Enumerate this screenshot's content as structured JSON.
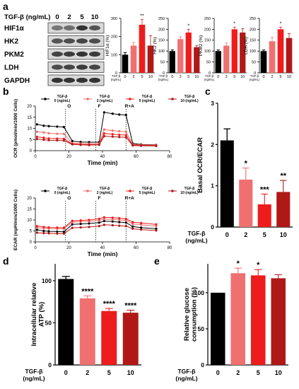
{
  "panel_labels": {
    "a": "a",
    "b": "b",
    "c": "c",
    "d": "d",
    "e": "e"
  },
  "colors": {
    "c0": "#000000",
    "c2": "#f07070",
    "c5": "#ee1c1c",
    "c10": "#b01818",
    "blot_bg": "#d8d8d8",
    "band": "#2a2a2a"
  },
  "chart_data": [
    {
      "id": "a-blot",
      "type": "other",
      "treatment_label": "TGF-β (ng/mL)",
      "lanes": [
        "0",
        "2",
        "5",
        "10"
      ],
      "bands": [
        "HIF1α",
        "HK2",
        "PKM2",
        "LDH",
        "GAPDH"
      ]
    },
    {
      "id": "a-hif1a",
      "type": "bar",
      "ylabel": "HIF1α (%)",
      "categories": [
        "0",
        "2",
        "5",
        "10"
      ],
      "values": [
        100,
        150,
        265,
        150
      ],
      "errors": [
        12,
        18,
        30,
        55
      ],
      "ylim": [
        0,
        300
      ],
      "yticks": [
        "0",
        "100",
        "200",
        "300"
      ],
      "annotations": [
        "",
        "",
        "**",
        ""
      ],
      "xlabel_prefix": "TGF-β\n(ng/mL)"
    },
    {
      "id": "a-hk2",
      "type": "bar",
      "ylabel": "HK2 (%)",
      "categories": [
        "0",
        "2",
        "5",
        "10"
      ],
      "values": [
        100,
        155,
        185,
        118
      ],
      "errors": [
        5,
        10,
        15,
        8
      ],
      "ylim": [
        0,
        250
      ],
      "yticks": [
        "0",
        "50",
        "100",
        "150",
        "200",
        "250"
      ],
      "annotations": [
        "",
        "",
        "*",
        ""
      ],
      "xlabel_prefix": "TGF-β\n(ng/mL)"
    },
    {
      "id": "a-pkm2",
      "type": "bar",
      "ylabel": "PKM2 (%)",
      "categories": [
        "0",
        "2",
        "5",
        "10"
      ],
      "values": [
        100,
        125,
        200,
        185
      ],
      "errors": [
        5,
        12,
        10,
        18
      ],
      "ylim": [
        0,
        250
      ],
      "yticks": [
        "0",
        "50",
        "100",
        "150",
        "200",
        "250"
      ],
      "annotations": [
        "",
        "",
        "*",
        ""
      ],
      "xlabel_prefix": "TGF-β\n(ng/mL)"
    },
    {
      "id": "a-ldh",
      "type": "bar",
      "ylabel": "LDH (%)",
      "categories": [
        "0",
        "2",
        "5",
        "10"
      ],
      "values": [
        100,
        145,
        200,
        160
      ],
      "errors": [
        5,
        18,
        10,
        20
      ],
      "ylim": [
        0,
        250
      ],
      "yticks": [
        "0",
        "50",
        "100",
        "150",
        "200",
        "250"
      ],
      "annotations": [
        "",
        "",
        "*",
        ""
      ],
      "xlabel_prefix": "TGF-β\n(ng/mL)"
    },
    {
      "id": "b-ocr",
      "type": "line",
      "xlabel": "Time (min)",
      "ylabel": "OCR (pmol/min/1000 Cells)",
      "xlim": [
        0,
        80
      ],
      "ylim": [
        0,
        20
      ],
      "xticks": [
        0,
        20,
        40,
        60,
        80
      ],
      "yticks": [
        0,
        5,
        10,
        15,
        20
      ],
      "injections": [
        {
          "x": 18,
          "label": "O"
        },
        {
          "x": 36,
          "label": "F"
        },
        {
          "x": 54,
          "label": "R+A"
        }
      ],
      "x": [
        1,
        5,
        8,
        13,
        17,
        22,
        27,
        32,
        38,
        41,
        46,
        50,
        54,
        58,
        63,
        72
      ],
      "series": [
        {
          "name": "TGF-β\n0 (ng/mL)",
          "values": [
            11.8,
            11.2,
            11.0,
            10.8,
            10.6,
            4.3,
            3.9,
            3.8,
            3.8,
            17.2,
            16.6,
            16.2,
            16.0,
            3.2,
            2.8,
            2.6
          ]
        },
        {
          "name": "TGF-β\n2 (ng/mL)",
          "values": [
            8.5,
            8.2,
            7.8,
            7.6,
            7.5,
            3.4,
            3.2,
            3.1,
            3.2,
            9.5,
            9.0,
            8.7,
            8.5,
            2.8,
            2.6,
            2.5
          ]
        },
        {
          "name": "TGF-β\n5 (ng/mL)",
          "values": [
            6.2,
            5.8,
            5.5,
            5.4,
            5.3,
            3.0,
            2.8,
            2.7,
            2.8,
            7.7,
            7.4,
            7.1,
            7.0,
            2.5,
            2.4,
            2.3
          ]
        },
        {
          "name": "TGF-β\n10 (ng/mL)",
          "values": [
            5.2,
            4.9,
            4.7,
            4.6,
            4.5,
            2.8,
            2.6,
            2.5,
            2.6,
            6.5,
            6.3,
            6.1,
            6.0,
            2.3,
            2.2,
            2.1
          ]
        }
      ]
    },
    {
      "id": "b-ecar",
      "type": "line",
      "xlabel": "Time (min)",
      "ylabel": "ECAR (mpH/min/1000 Cells)",
      "xlim": [
        0,
        80
      ],
      "ylim": [
        0,
        20
      ],
      "xticks": [
        0,
        20,
        40,
        60,
        80
      ],
      "yticks": [
        0,
        5,
        10,
        15,
        20
      ],
      "injections": [
        {
          "x": 18,
          "label": "O"
        },
        {
          "x": 36,
          "label": "F"
        },
        {
          "x": 54,
          "label": "R+A"
        }
      ],
      "x": [
        1,
        5,
        8,
        13,
        17,
        22,
        27,
        32,
        38,
        41,
        46,
        50,
        54,
        58,
        63,
        72
      ],
      "series": [
        {
          "name": "TGF-β\n0 (ng/mL)",
          "values": [
            5.5,
            5.0,
            4.8,
            4.7,
            4.6,
            8.0,
            8.2,
            8.4,
            8.8,
            9.5,
            9.3,
            9.0,
            8.8,
            7.0,
            6.5,
            6.0
          ]
        },
        {
          "name": "TGF-β\n2 (ng/mL)",
          "values": [
            6.5,
            6.2,
            6.0,
            6.0,
            6.0,
            9.0,
            9.2,
            9.4,
            9.8,
            10.4,
            10.2,
            10.0,
            9.8,
            8.2,
            7.8,
            7.2
          ]
        },
        {
          "name": "TGF-β\n5 (ng/mL)",
          "values": [
            7.2,
            6.8,
            6.6,
            6.5,
            6.5,
            9.6,
            9.8,
            10.0,
            10.5,
            11.2,
            11.0,
            10.8,
            10.5,
            9.0,
            8.6,
            8.0
          ]
        },
        {
          "name": "TGF-β\n10 (ng/mL)",
          "values": [
            4.2,
            4.0,
            3.9,
            3.8,
            3.8,
            6.4,
            6.6,
            6.8,
            7.2,
            7.8,
            7.6,
            7.4,
            7.2,
            6.0,
            5.6,
            5.2
          ]
        }
      ]
    },
    {
      "id": "c",
      "type": "bar",
      "ylabel": "Basal OCR/ECAR",
      "xlabel": "TGF-β\n(ng/mL)",
      "categories": [
        "0",
        "2",
        "5",
        "10"
      ],
      "values": [
        2.1,
        1.15,
        0.55,
        0.85
      ],
      "errors": [
        0.28,
        0.28,
        0.25,
        0.28
      ],
      "ylim": [
        0,
        3
      ],
      "yticks": [
        "0",
        "1",
        "2",
        "3"
      ],
      "annotations": [
        "",
        "*",
        "***",
        "**"
      ]
    },
    {
      "id": "d",
      "type": "bar",
      "ylabel": "Intracellular relative\nATP (%)",
      "xlabel": "TGF-β\n(ng/mL)",
      "categories": [
        "0",
        "2",
        "5",
        "10"
      ],
      "values": [
        102,
        79,
        64,
        62
      ],
      "errors": [
        3,
        3,
        3,
        3
      ],
      "ylim": [
        0,
        120
      ],
      "yticks": [
        "0",
        "50",
        "100"
      ],
      "annotations": [
        "",
        "****",
        "****",
        "****"
      ]
    },
    {
      "id": "e",
      "type": "bar",
      "ylabel": "Relative glucose\nconsumption (%)",
      "xlabel": "TGF-β\n(ng/mL)",
      "categories": [
        "0",
        "2",
        "5",
        "10"
      ],
      "values": [
        100,
        127,
        124,
        120
      ],
      "errors": [
        0,
        7,
        8,
        5
      ],
      "ylim": [
        0,
        140
      ],
      "yticks": [
        "0",
        "50",
        "100"
      ],
      "annotations": [
        "",
        "*",
        "*",
        ""
      ]
    }
  ]
}
